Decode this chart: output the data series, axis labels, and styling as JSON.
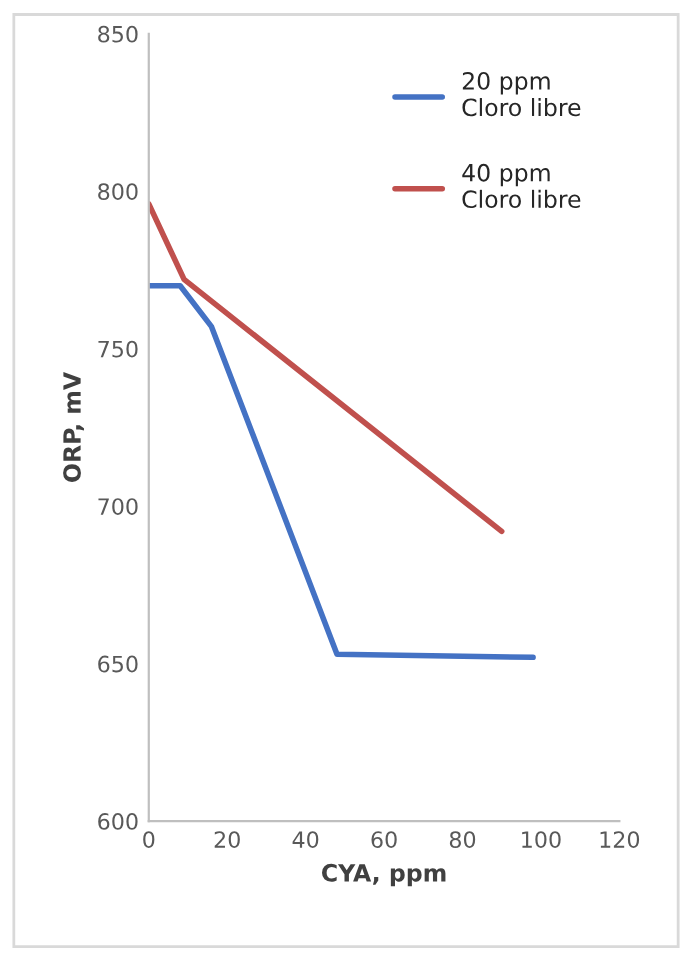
{
  "chart_data": {
    "type": "line",
    "xlabel": "CYA, ppm",
    "ylabel": "ORP, mV",
    "xlim": [
      0,
      120
    ],
    "xticks": [
      0,
      20,
      40,
      60,
      80,
      100,
      120
    ],
    "ylim": [
      600,
      850
    ],
    "yticks": [
      600,
      650,
      700,
      750,
      800,
      850
    ],
    "grid": false,
    "legend": "top right",
    "marker": "none",
    "line_style": "solid",
    "series": [
      {
        "name": "20 ppm\nCloro libre",
        "color": "#4472c4",
        "x": [
          0,
          8,
          16,
          48,
          98
        ],
        "values": [
          770,
          770,
          757,
          653,
          652
        ]
      },
      {
        "name": "40 ppm\nCloro libre",
        "color": "#c0504d",
        "x": [
          0,
          9,
          90
        ],
        "values": [
          796,
          772,
          692
        ]
      }
    ]
  }
}
